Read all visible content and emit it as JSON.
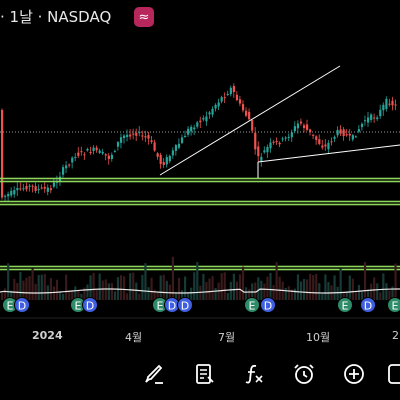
{
  "header": {
    "title": "· 1날 · NASDAQ",
    "logo_icon": "ripple-logo-icon",
    "logo_glyph": "≈"
  },
  "chart_data": {
    "type": "candlestick",
    "x_tick_labels": [
      "2024",
      "4월",
      "7월",
      "10월",
      "2"
    ],
    "event_markers": [
      "E",
      "D"
    ]
  },
  "colors": {
    "up": "#26a69a",
    "down": "#ef5350",
    "horizontal_line": "#8cd65a",
    "trendline": "#ffffff",
    "volume_dark": "#1e1e1e",
    "marker_e": "#2e8b6a",
    "marker_d": "#3f5fe0"
  },
  "toolbar": {
    "items": [
      {
        "name": "draw-brush-icon"
      },
      {
        "name": "notes-icon"
      },
      {
        "name": "function-indicator-icon"
      },
      {
        "name": "alarm-clock-icon"
      },
      {
        "name": "add-circle-icon"
      },
      {
        "name": "crosshair-icon"
      }
    ]
  }
}
